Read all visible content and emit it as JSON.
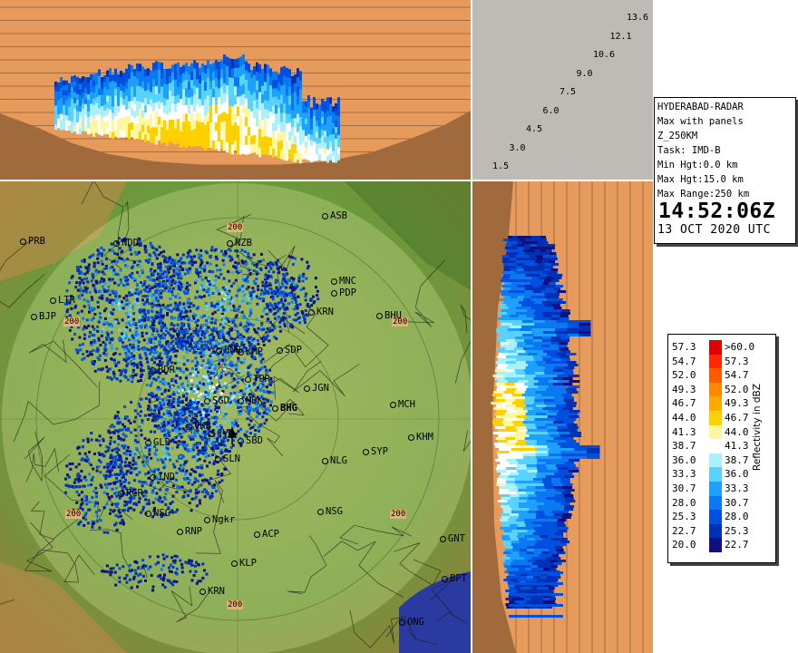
{
  "product": {
    "station": "HYDERABAD-RADAR",
    "mode": "Max with panels",
    "product_code": "Z_250KM",
    "task": "Task: IMD-B",
    "min_height": "Min Hgt:0.0 km",
    "max_height": "Max Hgt:15.0 km",
    "max_range": "Max Range:250 km",
    "time": "14:52:06Z",
    "date": "13 OCT 2020 UTC"
  },
  "elevation_angles": [
    "13.6",
    "12.1",
    "10.6",
    "9.0",
    "7.5",
    "6.0",
    "4.5",
    "3.0",
    "1.5"
  ],
  "legend": {
    "title": "Reflectivity in dBZ",
    "rows": [
      {
        "lo": "57.3",
        "hi": ">60.0",
        "color": "#e00000"
      },
      {
        "lo": "54.7",
        "hi": "57.3",
        "color": "#ff2a00"
      },
      {
        "lo": "52.0",
        "hi": "54.7",
        "color": "#ff5a00"
      },
      {
        "lo": "49.3",
        "hi": "52.0",
        "color": "#ff8800"
      },
      {
        "lo": "46.7",
        "hi": "49.3",
        "color": "#ffaa00"
      },
      {
        "lo": "44.0",
        "hi": "46.7",
        "color": "#ffd000"
      },
      {
        "lo": "41.3",
        "hi": "44.0",
        "color": "#fff6a0"
      },
      {
        "lo": "38.7",
        "hi": "41.3",
        "color": "#ffffff"
      },
      {
        "lo": "36.0",
        "hi": "38.7",
        "color": "#aaf0ff"
      },
      {
        "lo": "33.3",
        "hi": "36.0",
        "color": "#5ad2ff"
      },
      {
        "lo": "30.7",
        "hi": "33.3",
        "color": "#1ea0ff"
      },
      {
        "lo": "28.0",
        "hi": "30.7",
        "color": "#0a78f0"
      },
      {
        "lo": "25.3",
        "hi": "28.0",
        "color": "#0050e0"
      },
      {
        "lo": "22.7",
        "hi": "25.3",
        "color": "#0030b4"
      },
      {
        "lo": "20.0",
        "hi": "22.7",
        "color": "#101080"
      }
    ]
  },
  "map": {
    "range_ring_label": "200",
    "center_label": "BHG",
    "places": [
      {
        "name": "PRB"
      },
      {
        "name": "NDD"
      },
      {
        "name": "NZB"
      },
      {
        "name": "ASB"
      },
      {
        "name": "MNC"
      },
      {
        "name": "PDP"
      },
      {
        "name": "LTR"
      },
      {
        "name": "BJP"
      },
      {
        "name": "KRN"
      },
      {
        "name": "BHU"
      },
      {
        "name": "KMP"
      },
      {
        "name": "SDP"
      },
      {
        "name": "HNR"
      },
      {
        "name": "BDR"
      },
      {
        "name": "JGN"
      },
      {
        "name": "TPR"
      },
      {
        "name": "SGD"
      },
      {
        "name": "MDK"
      },
      {
        "name": "MCH"
      },
      {
        "name": "VKB"
      },
      {
        "name": "GLB"
      },
      {
        "name": "CVL"
      },
      {
        "name": "SBD"
      },
      {
        "name": "KHM"
      },
      {
        "name": "SYP"
      },
      {
        "name": "IND"
      },
      {
        "name": "NLG"
      },
      {
        "name": "RCR"
      },
      {
        "name": "NSG"
      },
      {
        "name": "SLN"
      },
      {
        "name": "RNP"
      },
      {
        "name": "Ngkr"
      },
      {
        "name": "ACP"
      },
      {
        "name": "GNT"
      },
      {
        "name": "KLP"
      },
      {
        "name": "BPT"
      },
      {
        "name": "KRN"
      },
      {
        "name": "ONG"
      },
      {
        "name": "NSG"
      }
    ]
  }
}
